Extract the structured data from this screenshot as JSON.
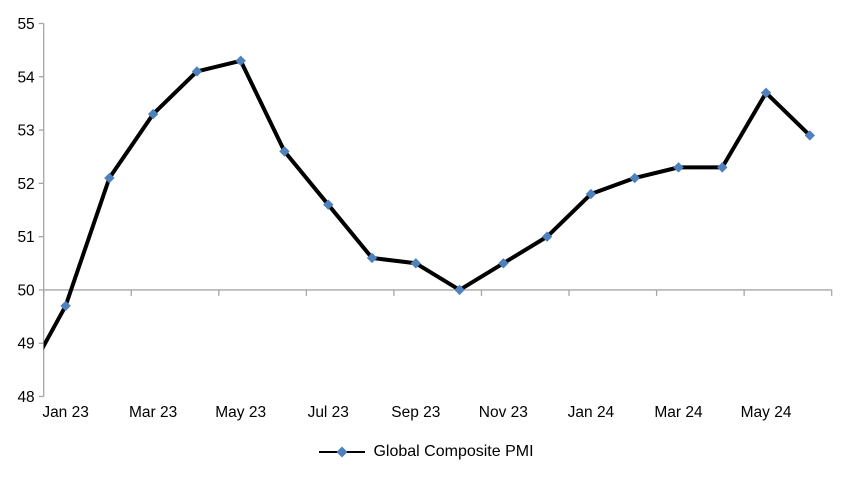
{
  "chart_data": {
    "type": "line",
    "title": "",
    "categories": [
      "Dec 22",
      "Jan 23",
      "Feb 23",
      "Mar 23",
      "Apr 23",
      "May 23",
      "Jun 23",
      "Jul 23",
      "Aug 23",
      "Sep 23",
      "Oct 23",
      "Nov 23",
      "Dec 23",
      "Jan 24",
      "Feb 24",
      "Mar 24",
      "Apr 24",
      "May 24",
      "Jun 24"
    ],
    "series": [
      {
        "name": "Global Composite PMI",
        "values": [
          48.2,
          49.7,
          52.1,
          53.3,
          54.1,
          54.3,
          52.6,
          51.6,
          50.6,
          50.5,
          50.0,
          50.5,
          51.0,
          51.8,
          52.1,
          52.3,
          52.3,
          53.7,
          52.9
        ]
      }
    ],
    "ylim": [
      48,
      55
    ],
    "ytick_labels": [
      "48",
      "49",
      "50",
      "51",
      "52",
      "53",
      "54",
      "55"
    ],
    "xtick_labels": [
      "Jan 23",
      "Mar 23",
      "May 23",
      "Jul 23",
      "Sep 23",
      "Nov 23",
      "Jan 24",
      "Mar 24",
      "May 24"
    ],
    "x_axis_crosses_at": 50,
    "x_tick_every_n_categories": 2,
    "xlabel": "",
    "ylabel": "",
    "grid": false,
    "legend_position": "bottom",
    "first_point_clipped_at_left_edge": true,
    "colors": {
      "line": "#000000",
      "marker": "#4F81BD",
      "axis": "#A6A6A6",
      "text": "#000000"
    }
  }
}
